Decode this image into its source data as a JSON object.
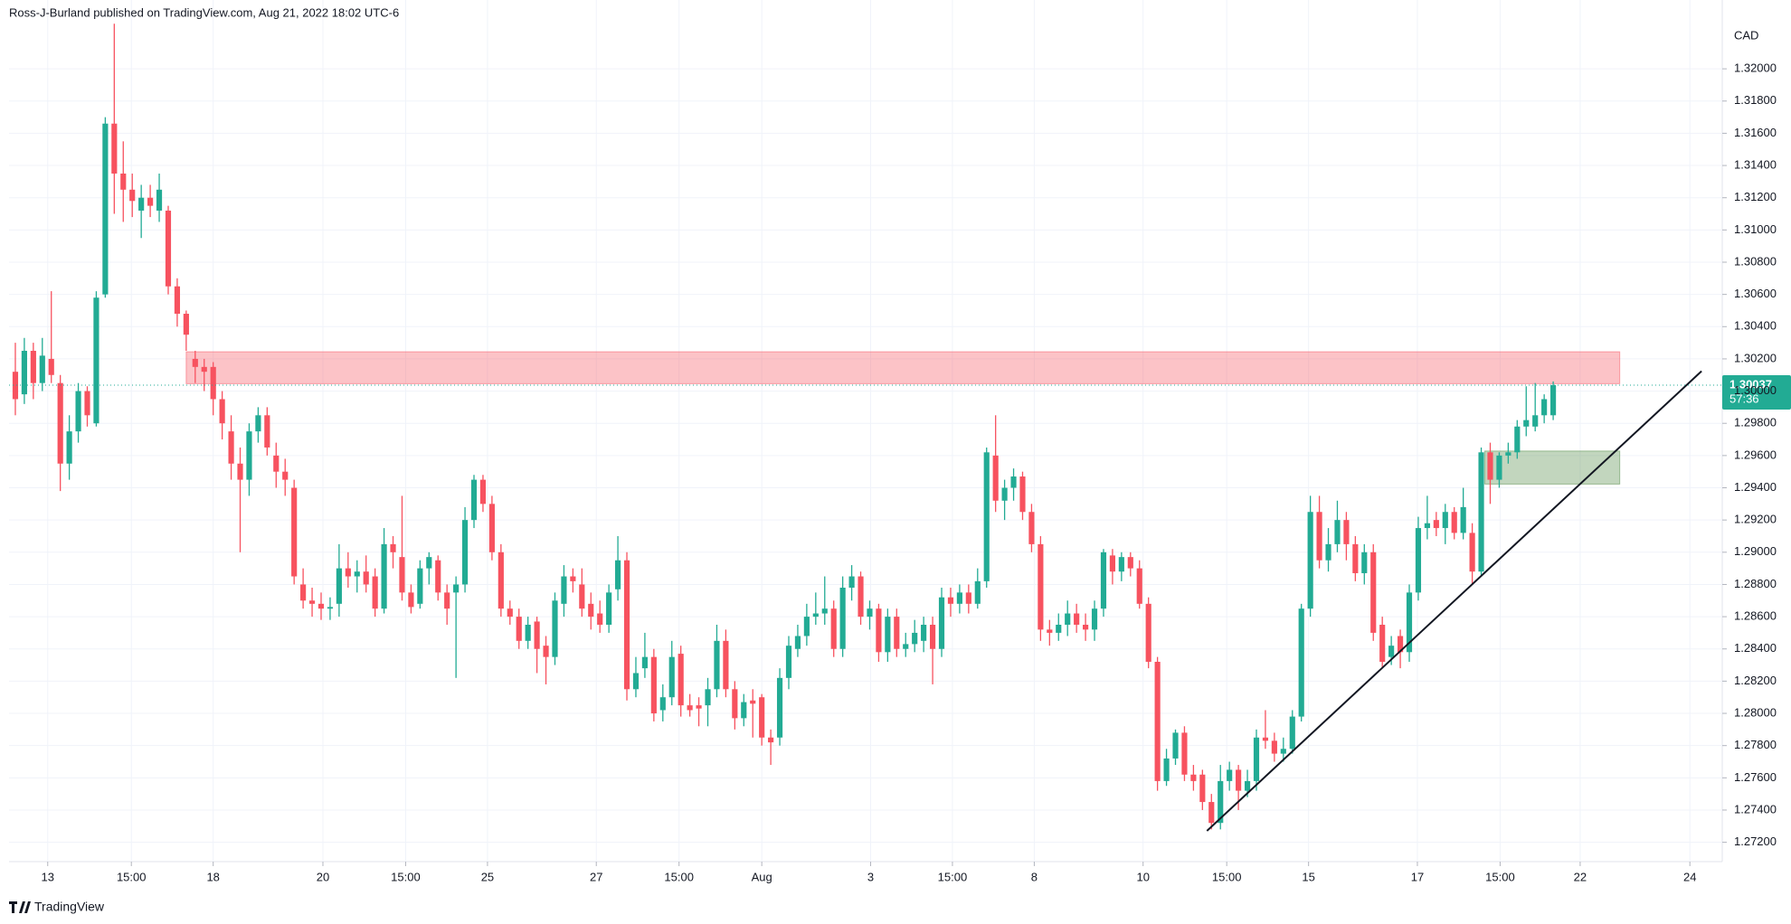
{
  "chart_data": {
    "type": "candlestick",
    "header": "Ross-J-Burland published on TradingView.com, Aug 21, 2022 18:02 UTC-6",
    "currency": "CAD",
    "brand": "TradingView",
    "up_color": "#22ab94",
    "down_color": "#f7525f",
    "grid": true,
    "xlim": [
      -0.7,
      189.8
    ],
    "ylim": [
      1.2708,
      1.3227
    ],
    "xticks": [
      {
        "value": 3.6,
        "label": "13"
      },
      {
        "value": 12.9,
        "label": "15:00"
      },
      {
        "value": 22.0,
        "label": "18"
      },
      {
        "value": 34.2,
        "label": "20"
      },
      {
        "value": 43.4,
        "label": "15:00"
      },
      {
        "value": 52.5,
        "label": "25"
      },
      {
        "value": 64.6,
        "label": "27"
      },
      {
        "value": 73.8,
        "label": "15:00"
      },
      {
        "value": 83.0,
        "label": "Aug"
      },
      {
        "value": 95.1,
        "label": "3"
      },
      {
        "value": 104.2,
        "label": "15:00"
      },
      {
        "value": 113.3,
        "label": "8"
      },
      {
        "value": 125.4,
        "label": "10"
      },
      {
        "value": 134.7,
        "label": "15:00"
      },
      {
        "value": 143.8,
        "label": "15"
      },
      {
        "value": 155.9,
        "label": "17"
      },
      {
        "value": 165.1,
        "label": "15:00"
      },
      {
        "value": 174.0,
        "label": "22"
      },
      {
        "value": 186.2,
        "label": "24"
      }
    ],
    "yticks": [
      {
        "value": 1.272,
        "label": "1.27200"
      },
      {
        "value": 1.274,
        "label": "1.27400"
      },
      {
        "value": 1.276,
        "label": "1.27600"
      },
      {
        "value": 1.278,
        "label": "1.27800"
      },
      {
        "value": 1.28,
        "label": "1.28000"
      },
      {
        "value": 1.282,
        "label": "1.28200"
      },
      {
        "value": 1.284,
        "label": "1.28400"
      },
      {
        "value": 1.286,
        "label": "1.28600"
      },
      {
        "value": 1.288,
        "label": "1.28800"
      },
      {
        "value": 1.29,
        "label": "1.29000"
      },
      {
        "value": 1.292,
        "label": "1.29200"
      },
      {
        "value": 1.294,
        "label": "1.29400"
      },
      {
        "value": 1.296,
        "label": "1.29600"
      },
      {
        "value": 1.298,
        "label": "1.29800"
      },
      {
        "value": 1.3,
        "label": "1.30000"
      },
      {
        "value": 1.302,
        "label": "1.30200"
      },
      {
        "value": 1.304,
        "label": "1.30400"
      },
      {
        "value": 1.306,
        "label": "1.30600"
      },
      {
        "value": 1.308,
        "label": "1.30800"
      },
      {
        "value": 1.31,
        "label": "1.31000"
      },
      {
        "value": 1.312,
        "label": "1.31200"
      },
      {
        "value": 1.314,
        "label": "1.31400"
      },
      {
        "value": 1.316,
        "label": "1.31600"
      },
      {
        "value": 1.318,
        "label": "1.31800"
      },
      {
        "value": 1.32,
        "label": "1.32000"
      }
    ],
    "last_price": {
      "value": 1.30037,
      "label": "1.30037",
      "color": "#22ab94"
    },
    "countdown": "57:36",
    "zones": [
      {
        "xlim": [
          19.0,
          178.4
        ],
        "ylim": [
          1.30046,
          1.30244
        ],
        "color": "#f7525f"
      },
      {
        "xlim": [
          163.4,
          178.4
        ],
        "ylim": [
          1.29423,
          1.29628
        ],
        "color": "#4f8a45"
      }
    ],
    "trendline": {
      "x": [
        132.5,
        187.5
      ],
      "y": [
        1.27271,
        1.30124
      ],
      "color": "#131722"
    },
    "x": [
      0,
      1,
      2,
      3,
      4,
      5,
      6,
      7,
      8,
      9,
      10,
      11,
      12,
      13,
      14,
      15,
      16,
      17,
      18,
      19,
      20,
      21,
      22,
      23,
      24,
      25,
      26,
      27,
      28,
      29,
      30,
      31,
      32,
      33,
      34,
      35,
      36,
      37,
      38,
      39,
      40,
      41,
      42,
      43,
      44,
      45,
      46,
      47,
      48,
      49,
      50,
      51,
      52,
      53,
      54,
      55,
      56,
      57,
      58,
      59,
      60,
      61,
      62,
      63,
      64,
      65,
      66,
      67,
      68,
      69,
      70,
      71,
      72,
      73,
      74,
      75,
      76,
      77,
      78,
      79,
      80,
      81,
      82,
      83,
      84,
      85,
      86,
      87,
      88,
      89,
      90,
      91,
      92,
      93,
      94,
      95,
      96,
      97,
      98,
      99,
      100,
      101,
      102,
      103,
      104,
      105,
      106,
      107,
      108,
      109,
      110,
      111,
      112,
      113,
      114,
      115,
      116,
      117,
      118,
      119,
      120,
      121,
      122,
      123,
      124,
      125,
      126,
      127,
      128,
      129,
      130,
      131,
      132,
      133,
      134,
      135,
      136,
      137,
      138,
      139,
      140,
      141,
      142,
      143,
      144,
      145,
      146,
      147,
      148,
      149,
      150,
      151,
      152,
      153,
      154,
      155,
      156,
      157,
      158,
      159,
      160,
      161,
      162,
      163,
      164,
      165,
      166,
      167,
      168,
      169,
      170,
      171
    ],
    "open": [
      1.3012,
      1.2998,
      1.3025,
      1.3005,
      1.302,
      1.3005,
      1.2955,
      1.2975,
      1.3,
      1.298,
      1.306,
      1.3166,
      1.3135,
      1.3125,
      1.3112,
      1.312,
      1.3112,
      1.3112,
      1.3065,
      1.3048,
      1.302,
      1.3015,
      1.3015,
      1.2995,
      1.2975,
      1.2955,
      1.2945,
      1.2975,
      1.2985,
      1.296,
      1.295,
      1.294,
      1.288,
      1.287,
      1.2868,
      1.2865,
      1.2868,
      1.289,
      1.2885,
      1.2888,
      1.2885,
      1.2865,
      1.2905,
      1.2897,
      1.2875,
      1.2868,
      1.289,
      1.2895,
      1.2875,
      1.2875,
      1.288,
      1.292,
      1.2945,
      1.293,
      1.29,
      1.2865,
      1.286,
      1.2845,
      1.2857,
      1.2842,
      1.2835,
      1.2868,
      1.2885,
      1.288,
      1.2868,
      1.2862,
      1.2855,
      1.2877,
      1.2895,
      1.2815,
      1.2828,
      1.2835,
      1.2802,
      1.281,
      1.2837,
      1.2805,
      1.2805,
      1.2805,
      1.2815,
      1.2845,
      1.2815,
      1.2797,
      1.2808,
      1.281,
      1.2785,
      1.2785,
      1.2822,
      1.284,
      1.2848,
      1.286,
      1.2862,
      1.2865,
      1.284,
      1.2878,
      1.2885,
      1.286,
      1.2865,
      1.2838,
      1.286,
      1.284,
      1.2843,
      1.2845,
      1.2855,
      1.284,
      1.2872,
      1.2868,
      1.2875,
      1.2868,
      1.2882,
      1.296,
      1.2932,
      1.294,
      1.2947,
      1.2925,
      1.2905,
      1.2852,
      1.285,
      1.2855,
      1.2862,
      1.2855,
      1.2852,
      1.2865,
      1.2898,
      1.2888,
      1.2897,
      1.289,
      1.2868,
      1.2832,
      1.2758,
      1.2772,
      1.2788,
      1.2762,
      1.2762,
      1.2745,
      1.2732,
      1.2758,
      1.2765,
      1.2752,
      1.2758,
      1.2785,
      1.2783,
      1.2775,
      1.2778,
      1.2798,
      1.2865,
      1.2925,
      1.2895,
      1.2905,
      1.292,
      1.2905,
      1.2887,
      1.29,
      1.2855,
      1.2835,
      1.2848,
      1.2838,
      1.2875,
      1.2915,
      1.292,
      1.2915,
      1.2925,
      1.2912,
      1.2912,
      1.2888,
      1.2962,
      1.2945,
      1.296,
      1.2962,
      1.2978,
      1.2978,
      1.2985,
      1.2985
    ],
    "high": [
      1.303,
      1.3033,
      1.303,
      1.3033,
      1.3062,
      1.301,
      1.2985,
      1.3005,
      1.3003,
      1.3062,
      1.317,
      1.3228,
      1.3155,
      1.3135,
      1.3128,
      1.3128,
      1.3135,
      1.3115,
      1.307,
      1.305,
      1.3025,
      1.302,
      1.3018,
      1.3,
      1.2985,
      1.2965,
      1.298,
      1.299,
      1.299,
      1.2968,
      1.2958,
      1.2945,
      1.289,
      1.2878,
      1.2875,
      1.2872,
      1.2905,
      1.29,
      1.2895,
      1.2898,
      1.289,
      1.2915,
      1.291,
      1.2935,
      1.288,
      1.2895,
      1.29,
      1.2898,
      1.288,
      1.2885,
      1.2928,
      1.2948,
      1.2948,
      1.2935,
      1.2905,
      1.287,
      1.2865,
      1.286,
      1.286,
      1.2848,
      1.2875,
      1.2892,
      1.289,
      1.289,
      1.2875,
      1.287,
      1.288,
      1.291,
      1.29,
      1.2835,
      1.285,
      1.284,
      1.2818,
      1.2845,
      1.2842,
      1.2812,
      1.281,
      1.2822,
      1.2855,
      1.2852,
      1.282,
      1.2812,
      1.2815,
      1.2812,
      1.279,
      1.2828,
      1.2848,
      1.2855,
      1.2868,
      1.2875,
      1.2885,
      1.287,
      1.2885,
      1.2892,
      1.2888,
      1.287,
      1.2868,
      1.2865,
      1.2865,
      1.285,
      1.2858,
      1.286,
      1.286,
      1.2878,
      1.2878,
      1.288,
      1.288,
      1.289,
      1.2965,
      1.2985,
      1.2945,
      1.2952,
      1.295,
      1.293,
      1.291,
      1.2858,
      1.2862,
      1.287,
      1.2868,
      1.2862,
      1.287,
      1.2902,
      1.2902,
      1.29,
      1.29,
      1.2895,
      1.2872,
      1.2835,
      1.2778,
      1.279,
      1.2792,
      1.2768,
      1.2765,
      1.275,
      1.2768,
      1.277,
      1.2768,
      1.2765,
      1.279,
      1.2802,
      1.2788,
      1.2785,
      1.2802,
      1.2868,
      1.2935,
      1.2935,
      1.2915,
      1.2932,
      1.2925,
      1.291,
      1.2905,
      1.2905,
      1.286,
      1.2848,
      1.2852,
      1.288,
      1.2922,
      1.2935,
      1.2925,
      1.293,
      1.2928,
      1.294,
      1.2918,
      1.2965,
      1.2968,
      1.2962,
      1.2968,
      1.2982,
      1.3003,
      1.3005,
      1.2998,
      1.3006
    ],
    "low": [
      1.2985,
      1.2992,
      1.2995,
      1.3,
      1.3005,
      1.2938,
      1.2945,
      1.2968,
      1.2978,
      1.2978,
      1.3058,
      1.311,
      1.3105,
      1.3108,
      1.3095,
      1.3108,
      1.3105,
      1.306,
      1.304,
      1.3025,
      1.3005,
      1.3,
      1.2985,
      1.297,
      1.2945,
      1.29,
      1.2935,
      1.2968,
      1.296,
      1.294,
      1.2935,
      1.288,
      1.2865,
      1.286,
      1.2858,
      1.2858,
      1.286,
      1.2878,
      1.2875,
      1.2875,
      1.286,
      1.2862,
      1.289,
      1.287,
      1.2862,
      1.2865,
      1.288,
      1.287,
      1.2855,
      1.2822,
      1.2875,
      1.2915,
      1.2925,
      1.2895,
      1.286,
      1.2855,
      1.284,
      1.284,
      1.2825,
      1.2818,
      1.283,
      1.286,
      1.2875,
      1.286,
      1.2852,
      1.285,
      1.285,
      1.287,
      1.2808,
      1.281,
      1.2822,
      1.2795,
      1.2795,
      1.2805,
      1.2798,
      1.2798,
      1.2792,
      1.2792,
      1.281,
      1.281,
      1.279,
      1.2792,
      1.2785,
      1.278,
      1.2768,
      1.278,
      1.2815,
      1.2835,
      1.2842,
      1.2855,
      1.2855,
      1.2835,
      1.2835,
      1.287,
      1.2855,
      1.2852,
      1.2832,
      1.2832,
      1.2835,
      1.2835,
      1.2838,
      1.2838,
      1.2818,
      1.2835,
      1.286,
      1.2862,
      1.2862,
      1.2865,
      1.2878,
      1.2925,
      1.292,
      1.2932,
      1.292,
      1.29,
      1.2845,
      1.2842,
      1.2845,
      1.2848,
      1.285,
      1.2845,
      1.2845,
      1.286,
      1.288,
      1.2882,
      1.2885,
      1.2865,
      1.2828,
      1.2752,
      1.2755,
      1.2768,
      1.2758,
      1.2752,
      1.274,
      1.2728,
      1.2728,
      1.2752,
      1.274,
      1.2748,
      1.2752,
      1.2778,
      1.277,
      1.277,
      1.2775,
      1.2795,
      1.286,
      1.289,
      1.2888,
      1.29,
      1.2895,
      1.2882,
      1.288,
      1.2845,
      1.2828,
      1.283,
      1.2828,
      1.2832,
      1.287,
      1.2908,
      1.291,
      1.2905,
      1.2908,
      1.2908,
      1.288,
      1.2885,
      1.293,
      1.294,
      1.2955,
      1.2958,
      1.2972,
      1.2975,
      1.298,
      1.2982
    ],
    "close": [
      1.2995,
      1.3025,
      1.3005,
      1.3022,
      1.301,
      1.2955,
      1.2975,
      1.3,
      1.2985,
      1.3058,
      1.3166,
      1.3135,
      1.3125,
      1.3118,
      1.312,
      1.3115,
      1.3125,
      1.3065,
      1.3048,
      1.3035,
      1.3015,
      1.3012,
      1.2995,
      1.298,
      1.2955,
      1.2945,
      1.2975,
      1.2985,
      1.2965,
      1.295,
      1.2945,
      1.2885,
      1.287,
      1.2868,
      1.2865,
      1.2866,
      1.289,
      1.2885,
      1.2888,
      1.288,
      1.2865,
      1.2905,
      1.29,
      1.2875,
      1.2866,
      1.289,
      1.2897,
      1.2875,
      1.2865,
      1.288,
      1.292,
      1.2945,
      1.293,
      1.29,
      1.2865,
      1.286,
      1.2845,
      1.2855,
      1.284,
      1.2835,
      1.287,
      1.2885,
      1.2882,
      1.2865,
      1.286,
      1.2855,
      1.2875,
      1.2895,
      1.2815,
      1.2825,
      1.2835,
      1.28,
      1.281,
      1.2835,
      1.2805,
      1.2802,
      1.2803,
      1.2815,
      1.2845,
      1.2815,
      1.2797,
      1.2807,
      1.2806,
      1.2785,
      1.2782,
      1.2822,
      1.2842,
      1.2848,
      1.286,
      1.2862,
      1.2865,
      1.284,
      1.2878,
      1.2885,
      1.286,
      1.2865,
      1.2838,
      1.286,
      1.284,
      1.2843,
      1.285,
      1.2855,
      1.284,
      1.2872,
      1.2868,
      1.2875,
      1.2868,
      1.2882,
      1.2962,
      1.2932,
      1.294,
      1.2947,
      1.2925,
      1.2905,
      1.2852,
      1.285,
      1.2855,
      1.2862,
      1.2855,
      1.2852,
      1.2865,
      1.29,
      1.2888,
      1.2897,
      1.289,
      1.2868,
      1.2832,
      1.2758,
      1.2772,
      1.2788,
      1.2762,
      1.2758,
      1.2745,
      1.2732,
      1.2758,
      1.2765,
      1.2752,
      1.2758,
      1.2785,
      1.2783,
      1.2775,
      1.2778,
      1.2798,
      1.2865,
      1.2925,
      1.2895,
      1.2905,
      1.292,
      1.2905,
      1.2887,
      1.29,
      1.285,
      1.2832,
      1.2842,
      1.2838,
      1.2875,
      1.2915,
      1.2918,
      1.2915,
      1.2925,
      1.2912,
      1.2928,
      1.2888,
      1.2962,
      1.2945,
      1.296,
      1.2962,
      1.2978,
      1.2982,
      1.2985,
      1.2995,
      1.30037
    ]
  }
}
